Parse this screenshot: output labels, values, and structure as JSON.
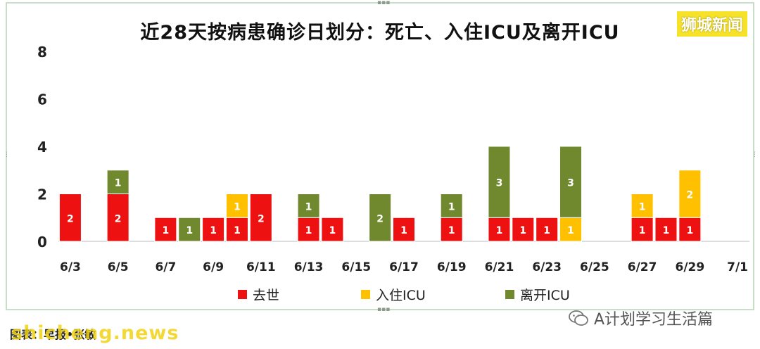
{
  "header": {
    "title": "近28天按病患确诊日划分：死亡、入住ICU及离开ICU",
    "brand": "狮城新闻"
  },
  "footer": {
    "wechat_account": "A计划学习生活篇",
    "credit": "图表：早报•张敏",
    "watermark": "shicheng.news"
  },
  "colors": {
    "death": "#ee1111",
    "icu_admit": "#ffc000",
    "icu_leave": "#70892e",
    "brand_bg": "#f7e22a"
  },
  "chart_data": {
    "type": "bar",
    "stacked": true,
    "title": "近28天按病患确诊日划分：死亡、入住ICU及离开ICU",
    "ylim": [
      0,
      8
    ],
    "yticks": [
      0,
      2,
      4,
      6,
      8
    ],
    "categories": [
      "6/3",
      "6/4",
      "6/5",
      "6/6",
      "6/7",
      "6/8",
      "6/9",
      "6/10",
      "6/11",
      "6/12",
      "6/13",
      "6/14",
      "6/15",
      "6/16",
      "6/17",
      "6/18",
      "6/19",
      "6/20",
      "6/21",
      "6/22",
      "6/23",
      "6/24",
      "6/25",
      "6/26",
      "6/27",
      "6/28",
      "6/29",
      "6/30",
      "7/1"
    ],
    "tick_labels": [
      "6/3",
      "6/5",
      "6/7",
      "6/9",
      "6/11",
      "6/13",
      "6/15",
      "6/17",
      "6/19",
      "6/21",
      "6/23",
      "6/25",
      "6/27",
      "6/29",
      "7/1"
    ],
    "series": [
      {
        "name": "去世",
        "color": "#ee1111",
        "values": [
          2,
          0,
          2,
          0,
          1,
          0,
          1,
          1,
          2,
          0,
          1,
          1,
          0,
          0,
          1,
          0,
          1,
          0,
          1,
          1,
          1,
          0,
          0,
          0,
          1,
          1,
          1,
          0,
          0
        ]
      },
      {
        "name": "入住ICU",
        "color": "#ffc000",
        "values": [
          0,
          0,
          0,
          0,
          0,
          0,
          0,
          1,
          0,
          0,
          0,
          0,
          0,
          0,
          0,
          0,
          0,
          0,
          0,
          0,
          0,
          1,
          0,
          0,
          1,
          0,
          2,
          0,
          0
        ]
      },
      {
        "name": "离开ICU",
        "color": "#70892e",
        "values": [
          0,
          0,
          1,
          0,
          0,
          1,
          0,
          0,
          0,
          0,
          1,
          0,
          0,
          2,
          0,
          0,
          1,
          0,
          3,
          0,
          0,
          3,
          0,
          0,
          0,
          0,
          0,
          0,
          0
        ]
      }
    ],
    "legend_position": "bottom"
  }
}
